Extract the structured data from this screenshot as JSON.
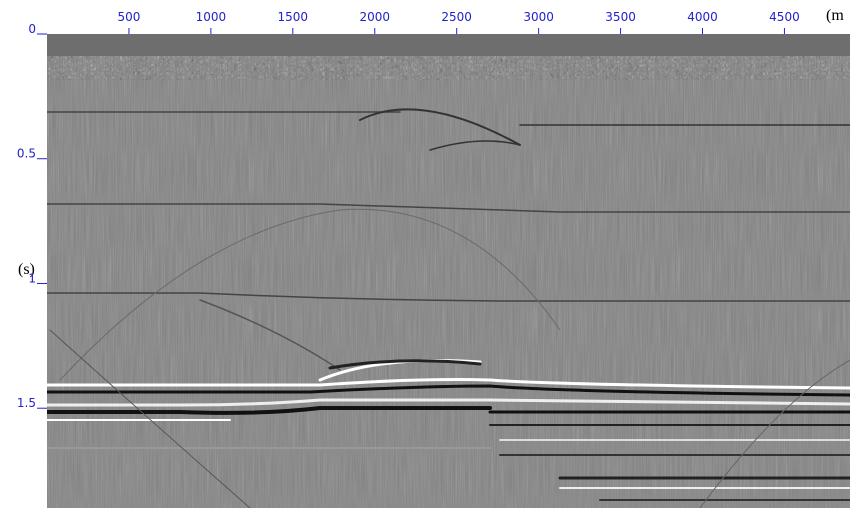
{
  "chart_data": {
    "type": "image",
    "x_label": "(m",
    "y_label": "(s)",
    "xlim": [
      0,
      4900
    ],
    "ylim": [
      0,
      1.9
    ],
    "xticks": [
      500,
      1000,
      1500,
      2000,
      2500,
      3000,
      3500,
      4000,
      4500
    ],
    "yticks": [
      0,
      0.5,
      1,
      1.5
    ]
  }
}
